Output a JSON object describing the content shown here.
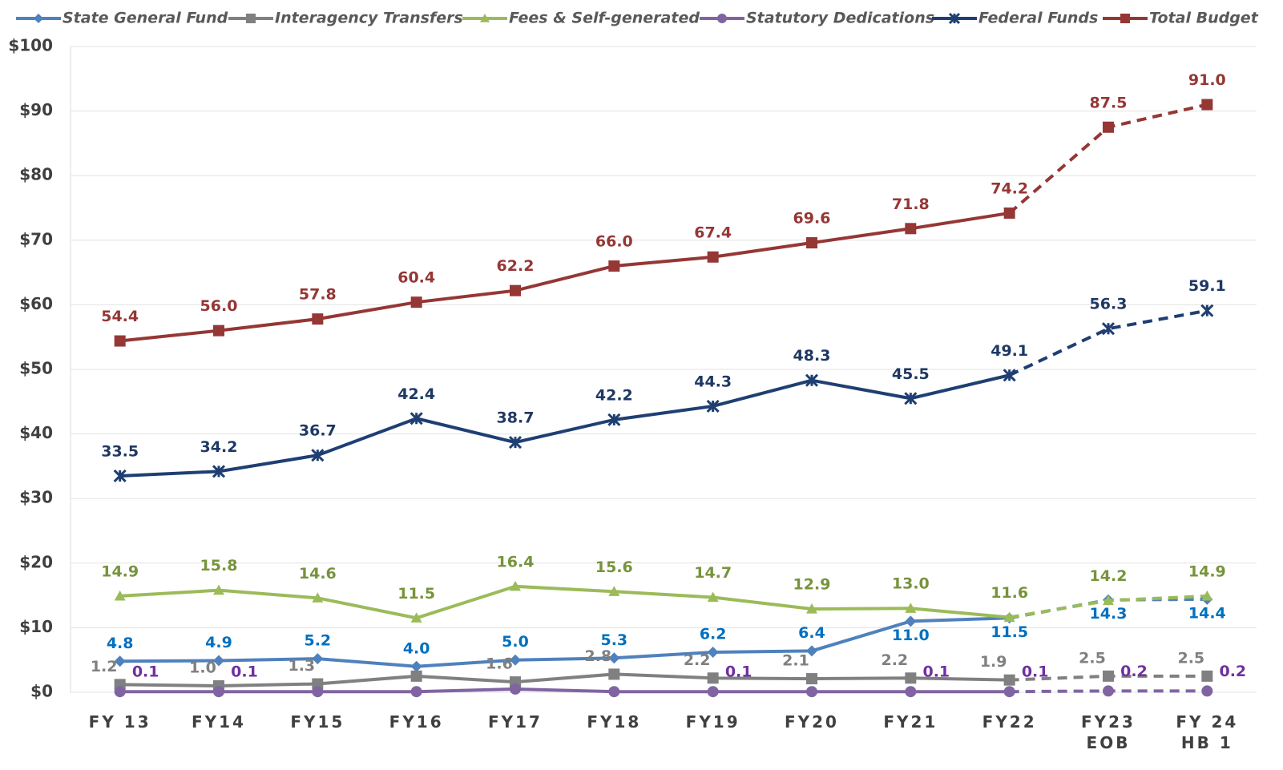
{
  "chart_data": {
    "type": "line",
    "categories": [
      "FY 13",
      "FY14",
      "FY15",
      "FY16",
      "FY17",
      "FY18",
      "FY19",
      "FY20",
      "FY21",
      "FY22",
      "FY23\nEOB",
      "FY 24\nHB 1"
    ],
    "ylim": [
      0,
      100
    ],
    "yticks": [
      {
        "value": 0,
        "label": "$0"
      },
      {
        "value": 10,
        "label": "$10"
      },
      {
        "value": 20,
        "label": "$20"
      },
      {
        "value": 30,
        "label": "$30"
      },
      {
        "value": 40,
        "label": "$40"
      },
      {
        "value": 50,
        "label": "$50"
      },
      {
        "value": 60,
        "label": "$60"
      },
      {
        "value": 70,
        "label": "$70"
      },
      {
        "value": 80,
        "label": "$80"
      },
      {
        "value": 90,
        "label": "$90"
      },
      {
        "value": 100,
        "label": "$100"
      }
    ],
    "grid": true,
    "legend": "top",
    "dashed_after": "FY22",
    "series": [
      {
        "name": "State General Fund",
        "color": "#4f81bd",
        "label_color": "#0070c0",
        "marker": "diamond",
        "values": [
          4.8,
          4.9,
          5.2,
          4.0,
          5.0,
          5.3,
          6.2,
          6.4,
          11.0,
          11.5,
          14.3,
          14.4
        ],
        "value_labels": [
          "4.8",
          "4.9",
          "5.2",
          "4.0",
          "5.0",
          "5.3",
          "6.2",
          "6.4",
          "11.0",
          "11.5",
          "14.3",
          "14.4"
        ]
      },
      {
        "name": "Interagency Transfers",
        "color": "#808080",
        "label_color": "#808080",
        "marker": "square",
        "values": [
          1.2,
          1.0,
          1.3,
          2.5,
          1.6,
          2.8,
          2.2,
          2.1,
          2.2,
          1.9,
          2.5,
          2.5
        ],
        "value_labels": [
          "1.2",
          "1.0",
          "1.3",
          null,
          "1.6",
          "2.8",
          "2.2",
          "2.1",
          "2.2",
          "1.9",
          "2.5",
          "2.5"
        ]
      },
      {
        "name": "Fees & Self-generated",
        "color": "#9bbb59",
        "label_color": "#77933c",
        "marker": "triangle",
        "values": [
          14.9,
          15.8,
          14.6,
          11.5,
          16.4,
          15.6,
          14.7,
          12.9,
          13.0,
          11.6,
          14.2,
          14.9
        ],
        "value_labels": [
          "14.9",
          "15.8",
          "14.6",
          "11.5",
          "16.4",
          "15.6",
          "14.7",
          "12.9",
          "13.0",
          "11.6",
          "14.2",
          "14.9"
        ]
      },
      {
        "name": "Statutory Dedications",
        "color": "#8064a2",
        "label_color": "#7030a0",
        "marker": "circle",
        "values": [
          0.1,
          0.1,
          0.1,
          0.1,
          0.5,
          0.1,
          0.1,
          0.1,
          0.1,
          0.1,
          0.2,
          0.2
        ],
        "value_labels": [
          "0.1",
          "0.1",
          null,
          null,
          null,
          null,
          "0.1",
          null,
          "0.1",
          "0.1",
          "0.2",
          "0.2"
        ]
      },
      {
        "name": "Federal Funds",
        "color": "#1f3f73",
        "label_color": "#1f3864",
        "marker": "star",
        "values": [
          33.5,
          34.2,
          36.7,
          42.4,
          38.7,
          42.2,
          44.3,
          48.3,
          45.5,
          49.1,
          56.3,
          59.1
        ],
        "value_labels": [
          "33.5",
          "34.2",
          "36.7",
          "42.4",
          "38.7",
          "42.2",
          "44.3",
          "48.3",
          "45.5",
          "49.1",
          "56.3",
          "59.1"
        ]
      },
      {
        "name": "Total Budget",
        "color": "#953735",
        "label_color": "#953735",
        "marker": "square",
        "values": [
          54.4,
          56.0,
          57.8,
          60.4,
          62.2,
          66.0,
          67.4,
          69.6,
          71.8,
          74.2,
          87.5,
          91.0
        ],
        "value_labels": [
          "54.4",
          "56.0",
          "57.8",
          "60.4",
          "62.2",
          "66.0",
          "67.4",
          "69.6",
          "71.8",
          "74.2",
          "87.5",
          "91.0"
        ]
      }
    ]
  }
}
